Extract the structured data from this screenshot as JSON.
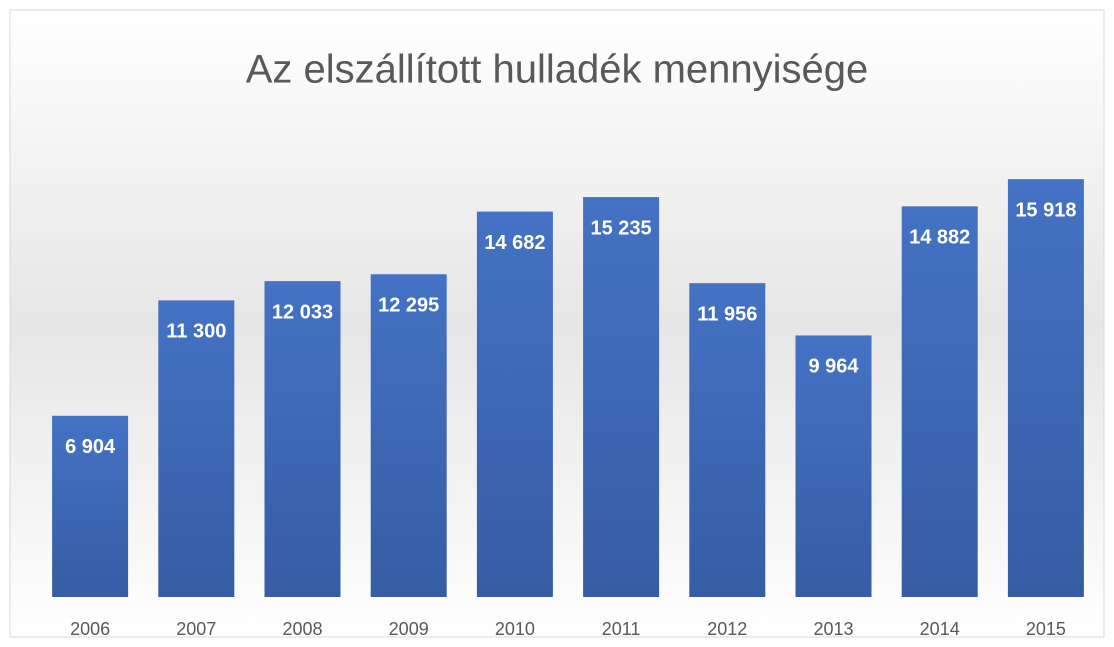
{
  "chart_data": {
    "type": "bar",
    "title": "Az elszállított hulladék mennyisége",
    "categories": [
      "2006",
      "2007",
      "2008",
      "2009",
      "2010",
      "2011",
      "2012",
      "2013",
      "2014",
      "2015"
    ],
    "values": [
      6904,
      11300,
      12033,
      12295,
      14682,
      15235,
      11956,
      9964,
      14882,
      15918
    ],
    "value_labels": [
      "6 904",
      "11 300",
      "12 033",
      "12 295",
      "14 682",
      "15 235",
      "11 956",
      "9 964",
      "14 882",
      "15 918"
    ],
    "color": "#4472c4",
    "ylim": [
      0,
      16000
    ]
  }
}
